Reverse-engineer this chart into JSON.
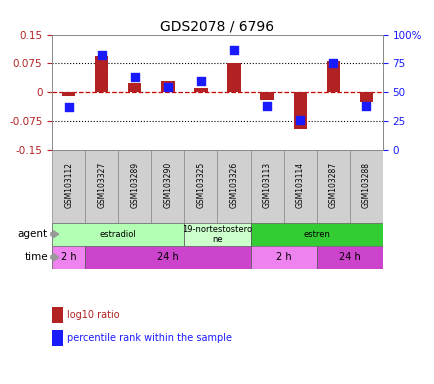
{
  "title": "GDS2078 / 6796",
  "samples": [
    "GSM103112",
    "GSM103327",
    "GSM103289",
    "GSM103290",
    "GSM103325",
    "GSM103326",
    "GSM103113",
    "GSM103114",
    "GSM103287",
    "GSM103288"
  ],
  "log10_ratio": [
    -0.01,
    0.095,
    0.025,
    0.03,
    0.01,
    0.077,
    -0.02,
    -0.095,
    0.082,
    -0.025
  ],
  "percentile_rank": [
    37,
    82,
    63,
    55,
    60,
    87,
    38,
    26,
    75,
    38
  ],
  "ylim_left": [
    -0.15,
    0.15
  ],
  "ylim_right": [
    0,
    100
  ],
  "yticks_left": [
    -0.15,
    -0.075,
    0,
    0.075,
    0.15
  ],
  "yticks_right": [
    0,
    25,
    50,
    75,
    100
  ],
  "hlines": [
    -0.075,
    0,
    0.075
  ],
  "bar_color": "#b22222",
  "dot_color": "#1a1aff",
  "zero_line_color": "#cc0000",
  "agent_rows": [
    {
      "label": "estradiol",
      "start": 0,
      "end": 4,
      "color": "#b3ffb3"
    },
    {
      "label": "19-nortestostero\nne",
      "start": 4,
      "end": 6,
      "color": "#ccffcc"
    },
    {
      "label": "estren",
      "start": 6,
      "end": 10,
      "color": "#33cc33"
    }
  ],
  "time_rows": [
    {
      "label": "2 h",
      "start": 0,
      "end": 1,
      "color": "#ee82ee"
    },
    {
      "label": "24 h",
      "start": 1,
      "end": 6,
      "color": "#cc44cc"
    },
    {
      "label": "2 h",
      "start": 6,
      "end": 8,
      "color": "#ee82ee"
    },
    {
      "label": "24 h",
      "start": 8,
      "end": 10,
      "color": "#cc44cc"
    }
  ],
  "legend_items": [
    {
      "label": "log10 ratio",
      "color": "#b22222"
    },
    {
      "label": "percentile rank within the sample",
      "color": "#1a1aff"
    }
  ],
  "bar_width": 0.4,
  "dot_size": 30,
  "sample_box_color": "#d0d0d0"
}
